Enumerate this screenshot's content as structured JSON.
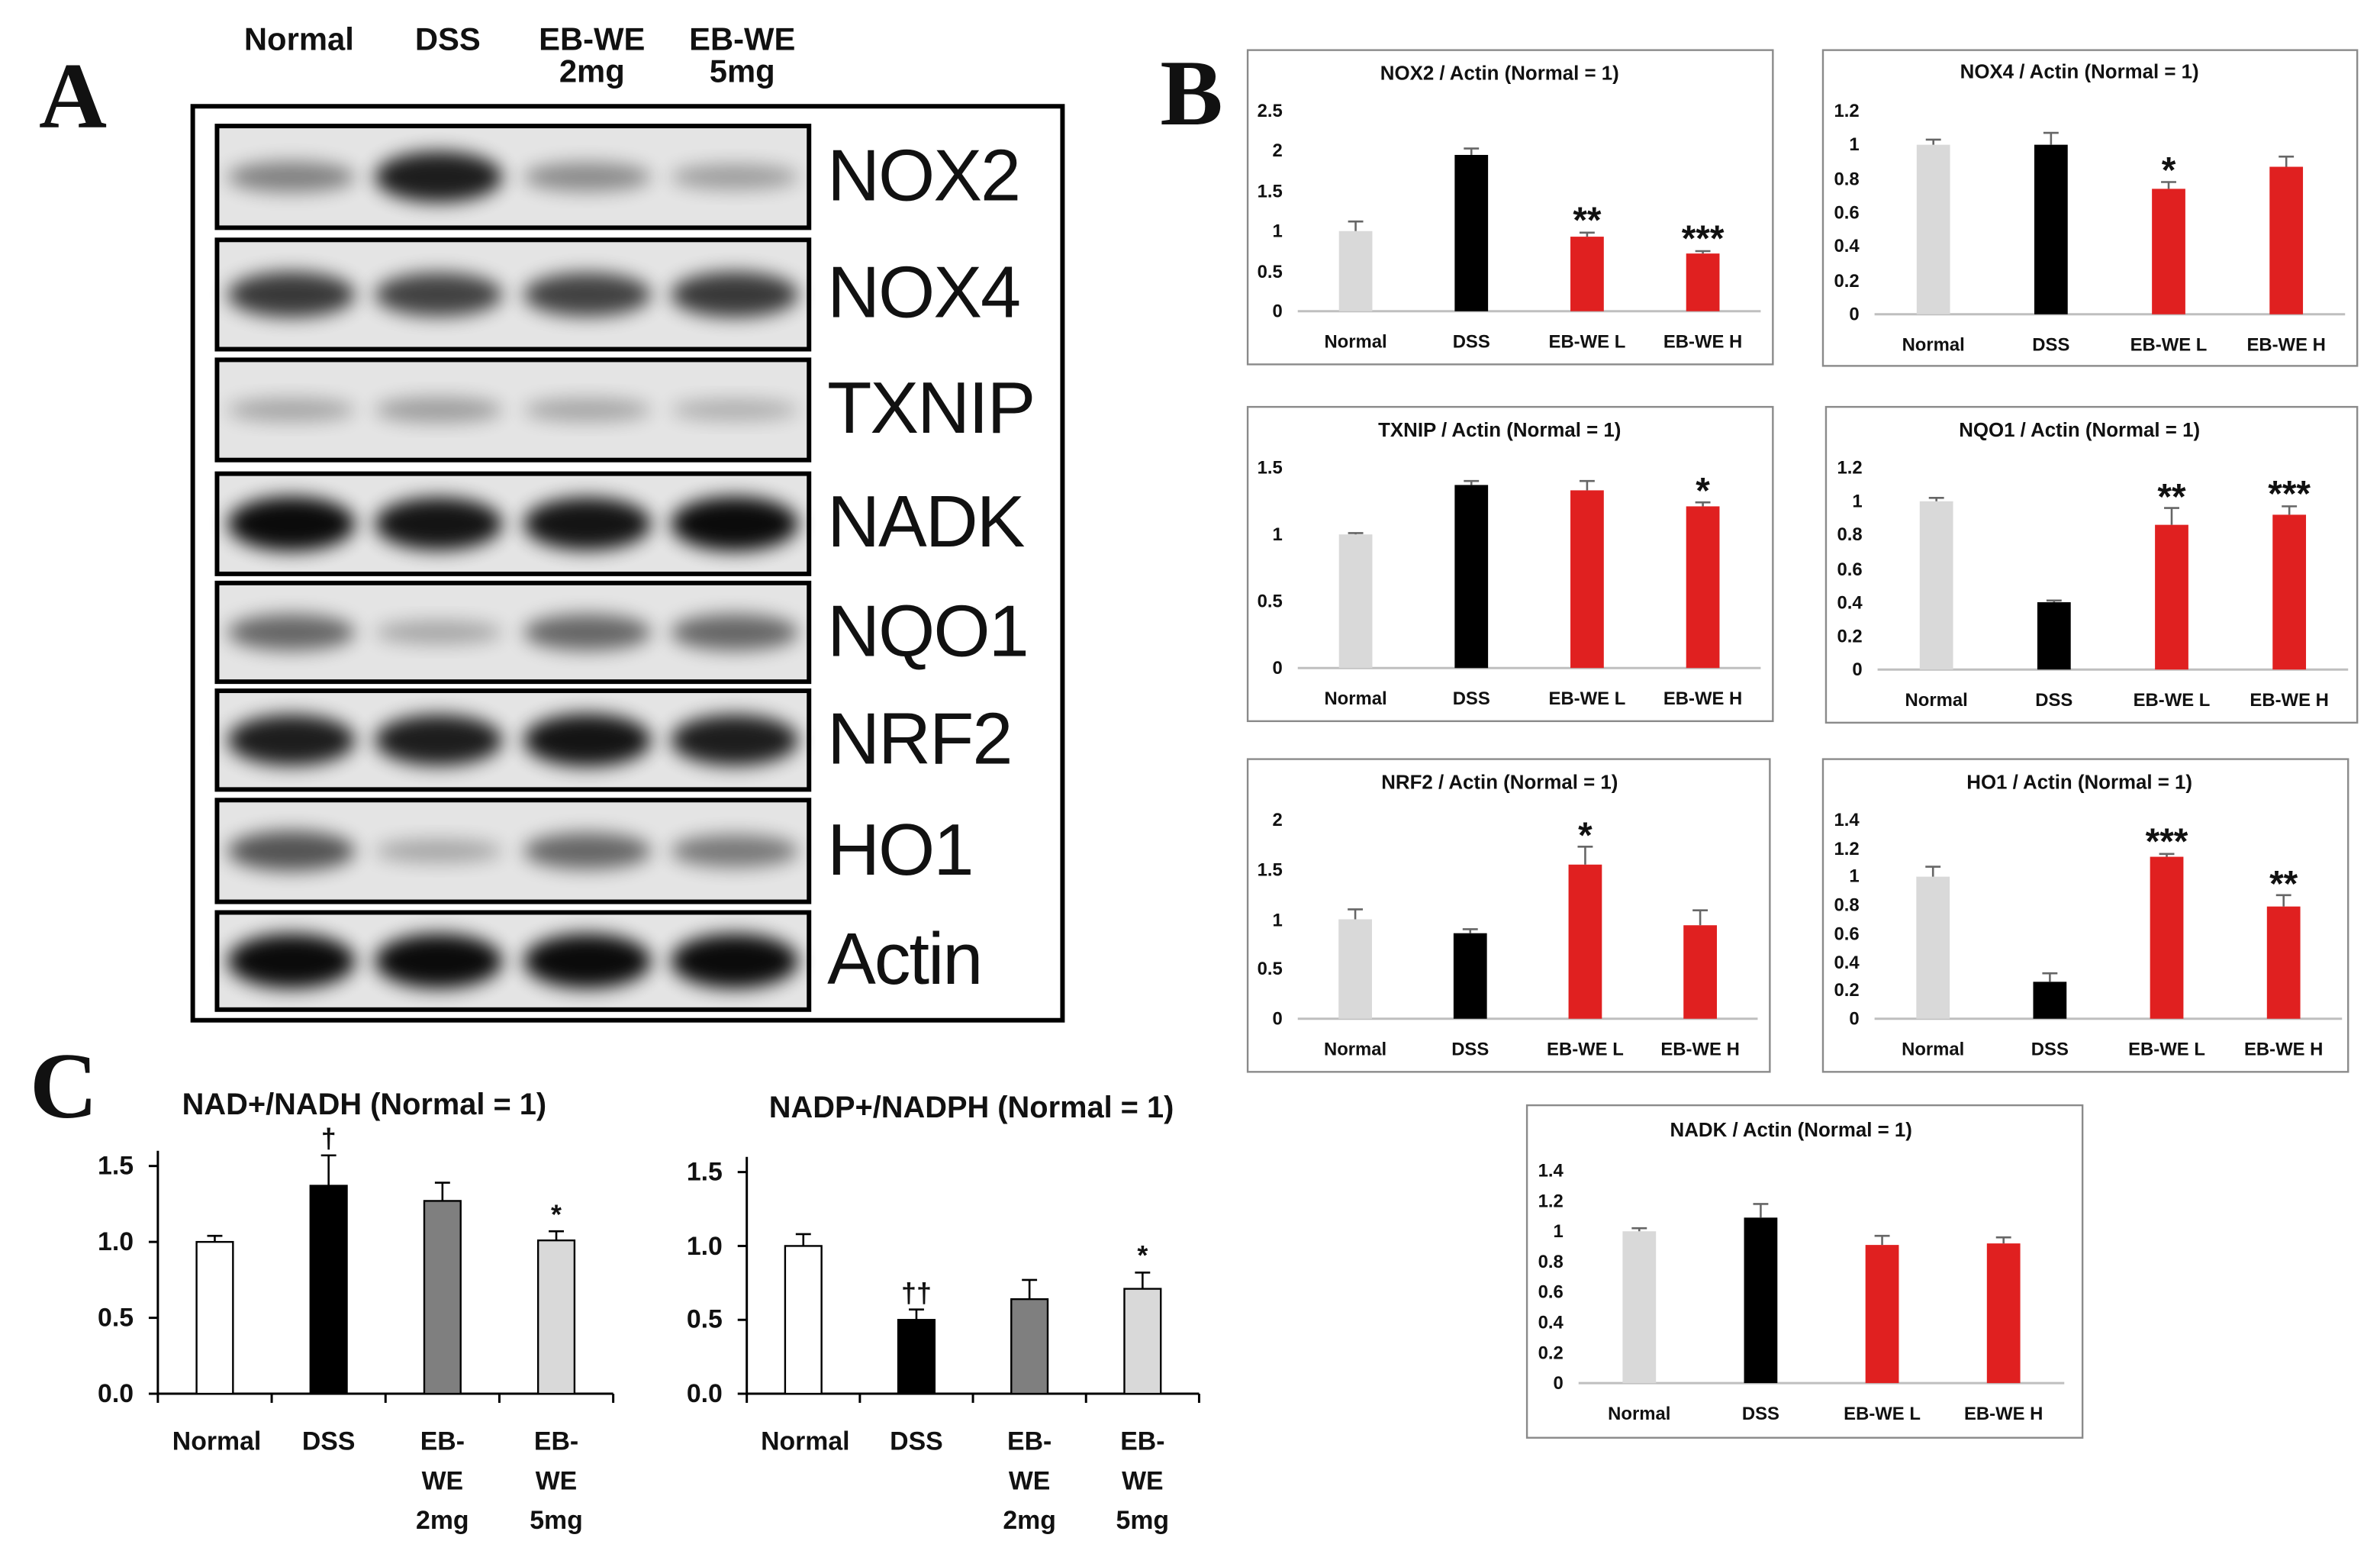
{
  "panel_labels": {
    "a": "A",
    "b": "B",
    "c": "C"
  },
  "blot": {
    "lanes": [
      "Normal",
      "DSS",
      "EB-WE 2mg",
      "EB-WE 5mg"
    ],
    "proteins": [
      "NOX2",
      "NOX4",
      "TXNIP",
      "NADK",
      "NQO1",
      "NRF2",
      "HO1",
      "Actin"
    ]
  },
  "chart_data": [
    {
      "type": "bar",
      "title": "NOX2 / Actin (Normal = 1)",
      "categories": [
        "Normal",
        "DSS",
        "EB-WE L",
        "EB-WE H"
      ],
      "values": [
        1,
        1.95,
        0.93,
        0.72
      ],
      "errors": [
        0.12,
        0.08,
        0.05,
        0.03
      ],
      "annotations": [
        null,
        null,
        "**",
        "***"
      ],
      "colors": [
        "#d9d9d9",
        "#000000",
        "#e02020",
        "#e02020"
      ],
      "ylim": [
        0,
        2.5
      ],
      "yticks": [
        0,
        0.5,
        1,
        1.5,
        2,
        2.5
      ]
    },
    {
      "type": "bar",
      "title": "NOX4 / Actin (Normal = 1)",
      "categories": [
        "Normal",
        "DSS",
        "EB-WE L",
        "EB-WE H"
      ],
      "values": [
        1,
        1,
        0.74,
        0.87
      ],
      "errors": [
        0.03,
        0.07,
        0.04,
        0.06
      ],
      "annotations": [
        null,
        null,
        "*",
        null
      ],
      "colors": [
        "#d9d9d9",
        "#000000",
        "#e02020",
        "#e02020"
      ],
      "ylim": [
        0,
        1.2
      ],
      "yticks": [
        0,
        0.2,
        0.4,
        0.6,
        0.8,
        1,
        1.2
      ]
    },
    {
      "type": "bar",
      "title": "TXNIP / Actin (Normal = 1)",
      "categories": [
        "Normal",
        "DSS",
        "EB-WE L",
        "EB-WE H"
      ],
      "values": [
        1,
        1.37,
        1.33,
        1.21
      ],
      "errors": [
        0.01,
        0.03,
        0.07,
        0.03
      ],
      "annotations": [
        null,
        null,
        null,
        "*"
      ],
      "colors": [
        "#d9d9d9",
        "#000000",
        "#e02020",
        "#e02020"
      ],
      "ylim": [
        0,
        1.5
      ],
      "yticks": [
        0,
        0.5,
        1,
        1.5
      ]
    },
    {
      "type": "bar",
      "title": "NQO1 / Actin (Normal = 1)",
      "categories": [
        "Normal",
        "DSS",
        "EB-WE L",
        "EB-WE H"
      ],
      "values": [
        1,
        0.4,
        0.86,
        0.92
      ],
      "errors": [
        0.02,
        0.01,
        0.1,
        0.05
      ],
      "annotations": [
        null,
        null,
        "**",
        "***"
      ],
      "colors": [
        "#d9d9d9",
        "#000000",
        "#e02020",
        "#e02020"
      ],
      "ylim": [
        0,
        1.2
      ],
      "yticks": [
        0,
        0.2,
        0.4,
        0.6,
        0.8,
        1,
        1.2
      ]
    },
    {
      "type": "bar",
      "title": "NRF2 / Actin (Normal = 1)",
      "categories": [
        "Normal",
        "DSS",
        "EB-WE L",
        "EB-WE H"
      ],
      "values": [
        1,
        0.86,
        1.55,
        0.94
      ],
      "errors": [
        0.1,
        0.04,
        0.18,
        0.15
      ],
      "annotations": [
        null,
        null,
        "*",
        null
      ],
      "colors": [
        "#d9d9d9",
        "#000000",
        "#e02020",
        "#e02020"
      ],
      "ylim": [
        0,
        2
      ],
      "yticks": [
        0,
        0.5,
        1,
        1.5,
        2
      ]
    },
    {
      "type": "bar",
      "title": "HO1 / Actin (Normal = 1)",
      "categories": [
        "Normal",
        "DSS",
        "EB-WE L",
        "EB-WE H"
      ],
      "values": [
        1,
        0.26,
        1.14,
        0.79
      ],
      "errors": [
        0.07,
        0.06,
        0.02,
        0.08
      ],
      "annotations": [
        null,
        null,
        "***",
        "**"
      ],
      "colors": [
        "#d9d9d9",
        "#000000",
        "#e02020",
        "#e02020"
      ],
      "ylim": [
        0,
        1.4
      ],
      "yticks": [
        0,
        0.2,
        0.4,
        0.6,
        0.8,
        1,
        1.2,
        1.4
      ]
    },
    {
      "type": "bar",
      "title": "NADK / Actin (Normal = 1)",
      "categories": [
        "Normal",
        "DSS",
        "EB-WE L",
        "EB-WE H"
      ],
      "values": [
        1,
        1.09,
        0.91,
        0.92
      ],
      "errors": [
        0.02,
        0.09,
        0.06,
        0.04
      ],
      "annotations": [
        null,
        null,
        null,
        null
      ],
      "colors": [
        "#d9d9d9",
        "#000000",
        "#e02020",
        "#e02020"
      ],
      "ylim": [
        0,
        1.4
      ],
      "yticks": [
        0,
        0.2,
        0.4,
        0.6,
        0.8,
        1,
        1.2,
        1.4
      ]
    },
    {
      "type": "bar",
      "title": "NAD+/NADH (Normal = 1)",
      "categories": [
        "Normal",
        "DSS",
        "EB-WE 2mg",
        "EB-WE 5mg"
      ],
      "values": [
        1,
        1.37,
        1.27,
        1.01
      ],
      "errors": [
        0.04,
        0.2,
        0.12,
        0.06
      ],
      "annotations": [
        null,
        "†",
        null,
        "*"
      ],
      "colors": [
        "#ffffff",
        "#000000",
        "#7f7f7f",
        "#d9d9d9"
      ],
      "edgecolor": "#000000",
      "ylim": [
        0,
        1.5
      ],
      "yticks": [
        {
          "value": 0,
          "label": "0.0"
        },
        0.5,
        {
          "value": 1,
          "label": "1.0"
        },
        1.5
      ]
    },
    {
      "type": "bar",
      "title": "NADP+/NADPH (Normal = 1)",
      "categories": [
        "Normal",
        "DSS",
        "EB-WE 2mg",
        "EB-WE 5mg"
      ],
      "values": [
        1,
        0.5,
        0.64,
        0.71
      ],
      "errors": [
        0.08,
        0.07,
        0.13,
        0.11
      ],
      "annotations": [
        null,
        "††",
        null,
        "*"
      ],
      "colors": [
        "#ffffff",
        "#000000",
        "#7f7f7f",
        "#d9d9d9"
      ],
      "edgecolor": "#000000",
      "ylim": [
        0,
        1.5
      ],
      "yticks": [
        {
          "value": 0,
          "label": "0.0"
        },
        0.5,
        {
          "value": 1,
          "label": "1.0"
        },
        1.5
      ]
    }
  ]
}
